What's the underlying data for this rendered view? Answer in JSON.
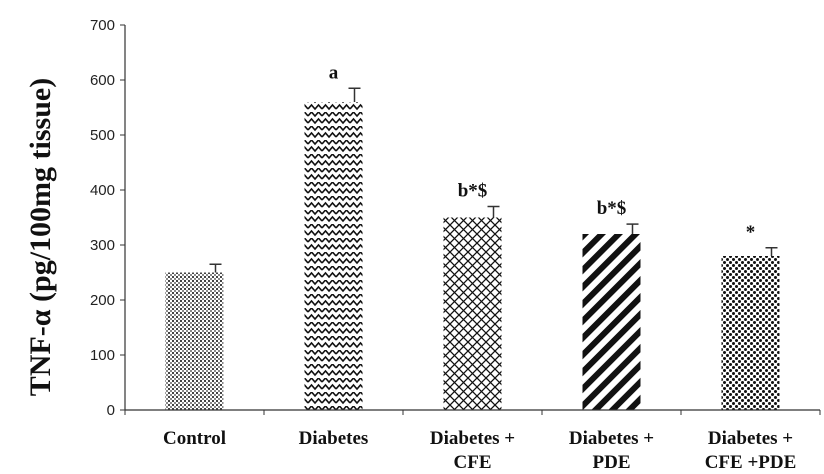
{
  "chart_data": {
    "type": "bar",
    "title": "",
    "xlabel": "",
    "ylabel": "TNF-α (pg/100mg tissue)",
    "ylim": [
      0,
      700
    ],
    "yticks": [
      0,
      100,
      200,
      300,
      400,
      500,
      600,
      700
    ],
    "grid": false,
    "legend": "none",
    "categories": [
      [
        "Control"
      ],
      [
        "Diabetes"
      ],
      [
        "Diabetes +",
        "CFE"
      ],
      [
        "Diabetes +",
        "PDE"
      ],
      [
        "Diabetes +",
        "CFE +PDE"
      ]
    ],
    "values": [
      250,
      560,
      350,
      320,
      280
    ],
    "errors": [
      15,
      25,
      20,
      18,
      15
    ],
    "annotations": [
      "",
      "a",
      "b*$",
      "b*$",
      "*"
    ],
    "patterns": [
      "fine-dots",
      "zigzag",
      "crosshatch",
      "diagonal-stripes",
      "coarse-dots"
    ]
  }
}
